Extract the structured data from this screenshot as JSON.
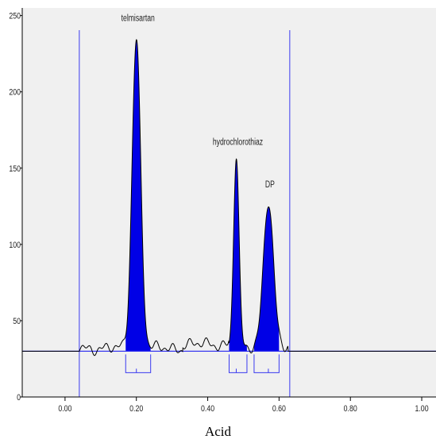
{
  "caption": "Acid",
  "colors": {
    "plot_bg": "#f0f0f0",
    "peak_fill": "#0000e6",
    "baseline": "#3a3af0",
    "axis": "#000000",
    "trace": "#000000"
  },
  "chart_data": {
    "type": "line",
    "title": "",
    "xlabel": "",
    "ylabel": "",
    "xlim": [
      -0.12,
      1.04
    ],
    "ylim": [
      0,
      255
    ],
    "x_ticks": [
      {
        "value": 0.0,
        "label": "0.00"
      },
      {
        "value": 0.2,
        "label": "0.20"
      },
      {
        "value": 0.4,
        "label": "0.40"
      },
      {
        "value": 0.6,
        "label": "0.60"
      },
      {
        "value": 0.8,
        "label": "0.80"
      },
      {
        "value": 1.0,
        "label": "1.00"
      }
    ],
    "y_ticks": [
      {
        "value": 0,
        "label": "0"
      },
      {
        "value": 50,
        "label": "50"
      },
      {
        "value": 100,
        "label": "100"
      },
      {
        "value": 150,
        "label": "150"
      },
      {
        "value": 200,
        "label": "200"
      },
      {
        "value": 250,
        "label": "250"
      }
    ],
    "baseline_level": 30,
    "scan_window": [
      0.04,
      0.63
    ],
    "peaks": [
      {
        "name": "telmisartan",
        "rf": 0.2,
        "height": 235,
        "start": 0.17,
        "end": 0.24
      },
      {
        "name": "hydrochlorothiaz",
        "rf": 0.48,
        "height": 157,
        "start": 0.46,
        "end": 0.51
      },
      {
        "name": "DP",
        "rf": 0.57,
        "height": 129,
        "start": 0.53,
        "end": 0.6
      }
    ]
  }
}
